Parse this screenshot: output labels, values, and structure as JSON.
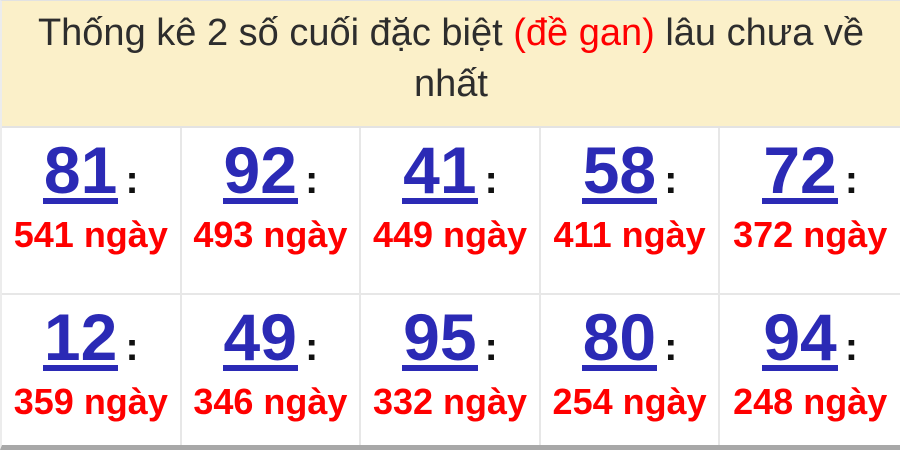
{
  "header": {
    "title_prefix": "Thống kê 2 số cuối đặc biệt ",
    "title_highlight": "(đề gan)",
    "title_suffix": " lâu chưa về nhất"
  },
  "punct": {
    "colon": ":"
  },
  "colors": {
    "header_bg": "#fbf0c9",
    "header_text": "#2d2d2d",
    "highlight_red": "#ff0000",
    "number_blue": "#2b2ab5",
    "days_red": "#ff0000",
    "divider_gray": "#e7e7e7",
    "bottom_border_gray": "#a8a8a8"
  },
  "cells": [
    {
      "number": "81",
      "days": "541 ngày"
    },
    {
      "number": "92",
      "days": "493 ngày"
    },
    {
      "number": "41",
      "days": "449 ngày"
    },
    {
      "number": "58",
      "days": "411 ngày"
    },
    {
      "number": "72",
      "days": "372 ngày"
    },
    {
      "number": "12",
      "days": "359 ngày"
    },
    {
      "number": "49",
      "days": "346 ngày"
    },
    {
      "number": "95",
      "days": "332 ngày"
    },
    {
      "number": "80",
      "days": "254 ngày"
    },
    {
      "number": "94",
      "days": "248 ngày"
    }
  ]
}
